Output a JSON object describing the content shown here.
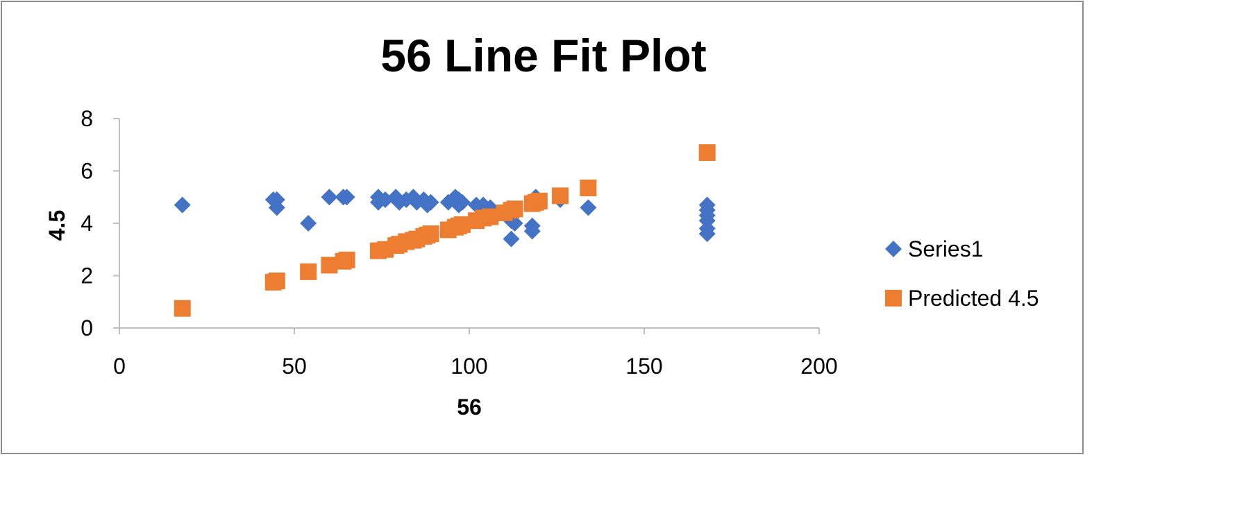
{
  "chart_data": {
    "type": "scatter",
    "title": "56 Line Fit  Plot",
    "xlabel": "56",
    "ylabel": "4.5",
    "xlim": [
      0,
      200
    ],
    "ylim": [
      0,
      8
    ],
    "xticks": [
      "0",
      "50",
      "100",
      "150",
      "200"
    ],
    "yticks": [
      "0",
      "2",
      "4",
      "6",
      "8"
    ],
    "grid": false,
    "legend_position": "right",
    "series": [
      {
        "name": "Series1",
        "marker": "diamond",
        "color": "#4472C4",
        "points": [
          [
            18,
            4.7
          ],
          [
            44,
            4.9
          ],
          [
            45,
            4.9
          ],
          [
            45,
            4.6
          ],
          [
            54,
            4.0
          ],
          [
            60,
            5.0
          ],
          [
            64,
            5.0
          ],
          [
            65,
            5.0
          ],
          [
            74,
            5.0
          ],
          [
            74,
            4.8
          ],
          [
            76,
            4.9
          ],
          [
            79,
            5.0
          ],
          [
            80,
            4.8
          ],
          [
            82,
            4.9
          ],
          [
            84,
            5.0
          ],
          [
            85,
            4.8
          ],
          [
            87,
            4.9
          ],
          [
            88,
            4.7
          ],
          [
            89,
            4.8
          ],
          [
            94,
            4.8
          ],
          [
            96,
            5.0
          ],
          [
            97,
            4.9
          ],
          [
            97,
            4.7
          ],
          [
            98,
            4.8
          ],
          [
            102,
            4.7
          ],
          [
            104,
            4.7
          ],
          [
            106,
            4.6
          ],
          [
            112,
            4.1
          ],
          [
            112,
            3.4
          ],
          [
            113,
            4.0
          ],
          [
            118,
            3.9
          ],
          [
            118,
            3.7
          ],
          [
            119,
            5.0
          ],
          [
            126,
            4.9
          ],
          [
            134,
            4.6
          ],
          [
            168,
            4.7
          ],
          [
            168,
            4.5
          ],
          [
            168,
            4.3
          ],
          [
            168,
            4.1
          ],
          [
            168,
            3.8
          ],
          [
            168,
            3.6
          ]
        ]
      },
      {
        "name": "Predicted 4.5",
        "marker": "square",
        "color": "#ED7D31",
        "points": [
          [
            18,
            0.75
          ],
          [
            44,
            1.75
          ],
          [
            45,
            1.8
          ],
          [
            54,
            2.15
          ],
          [
            60,
            2.4
          ],
          [
            64,
            2.55
          ],
          [
            65,
            2.6
          ],
          [
            74,
            2.95
          ],
          [
            76,
            3.0
          ],
          [
            79,
            3.15
          ],
          [
            80,
            3.2
          ],
          [
            82,
            3.3
          ],
          [
            84,
            3.35
          ],
          [
            85,
            3.4
          ],
          [
            87,
            3.5
          ],
          [
            88,
            3.55
          ],
          [
            89,
            3.6
          ],
          [
            94,
            3.75
          ],
          [
            96,
            3.85
          ],
          [
            97,
            3.9
          ],
          [
            98,
            3.95
          ],
          [
            102,
            4.1
          ],
          [
            104,
            4.2
          ],
          [
            106,
            4.25
          ],
          [
            110,
            4.4
          ],
          [
            112,
            4.5
          ],
          [
            113,
            4.55
          ],
          [
            118,
            4.75
          ],
          [
            119,
            4.8
          ],
          [
            120,
            4.85
          ],
          [
            126,
            5.05
          ],
          [
            134,
            5.35
          ],
          [
            168,
            6.7
          ]
        ]
      }
    ]
  }
}
